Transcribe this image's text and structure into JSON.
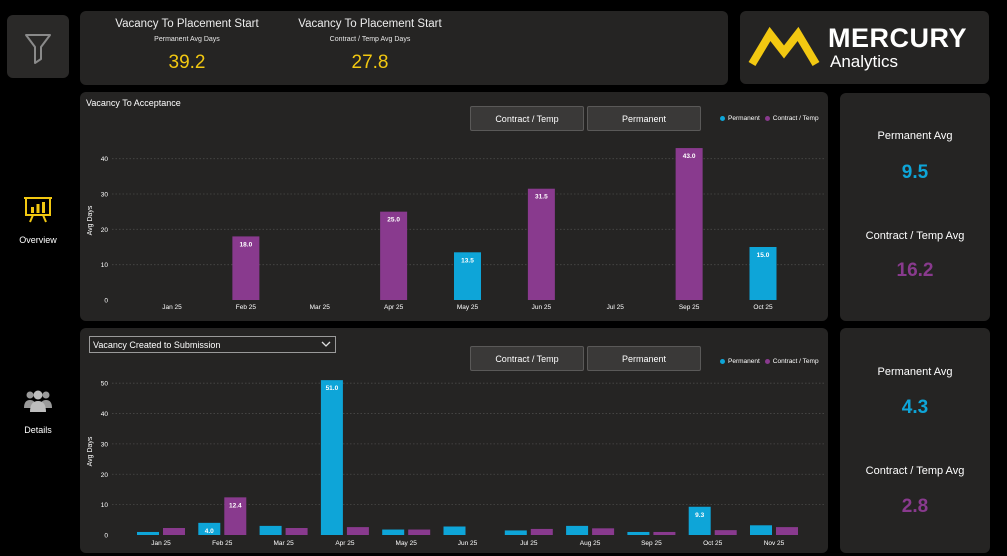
{
  "colors": {
    "permanent": "#0ea5d8",
    "contract": "#893a8e",
    "accent": "#f2c811",
    "card": "#252423"
  },
  "filter": {
    "icon": "filter-icon"
  },
  "kpis": [
    {
      "title": "Vacancy To Placement Start",
      "subtitle": "Permanent Avg Days",
      "value": "39.2"
    },
    {
      "title": "Vacancy To Placement Start",
      "subtitle": "Contract / Temp Avg Days",
      "value": "27.8"
    }
  ],
  "logo": {
    "brand": "MERCURY",
    "sub": "Analytics"
  },
  "nav": [
    {
      "label": "Overview",
      "icon": "presentation-board-icon"
    },
    {
      "label": "Details",
      "icon": "people-group-icon"
    }
  ],
  "chart1": {
    "title": "Vacancy To Acceptance",
    "buttons": [
      "Contract / Temp",
      "Permanent"
    ],
    "legend": [
      "Permanent",
      "Contract / Temp"
    ]
  },
  "chart2": {
    "dropdown": "Vacancy Created to Submission",
    "buttons": [
      "Contract / Temp",
      "Permanent"
    ],
    "legend": [
      "Permanent",
      "Contract / Temp"
    ]
  },
  "side1": {
    "perm_label": "Permanent Avg",
    "perm_value": "9.5",
    "contract_label": "Contract / Temp Avg",
    "contract_value": "16.2"
  },
  "side2": {
    "perm_label": "Permanent Avg",
    "perm_value": "4.3",
    "contract_label": "Contract / Temp Avg",
    "contract_value": "2.8"
  },
  "chart_data": [
    {
      "type": "bar",
      "title": "Vacancy To Acceptance",
      "xlabel": "",
      "ylabel": "Avg Days",
      "ylim": [
        0,
        45
      ],
      "yticks": [
        0,
        10,
        20,
        30,
        40
      ],
      "grid": true,
      "legend_position": "top-right",
      "categories": [
        "Jan 25",
        "Feb 25",
        "Mar 25",
        "Apr 25",
        "May 25",
        "Jun 25",
        "Jul 25",
        "Sep 25",
        "Oct 25"
      ],
      "series": [
        {
          "name": "Permanent",
          "values": [
            null,
            null,
            null,
            null,
            13.5,
            null,
            null,
            null,
            15.0
          ]
        },
        {
          "name": "Contract / Temp",
          "values": [
            null,
            18.0,
            null,
            25.0,
            null,
            31.5,
            null,
            43.0,
            null
          ]
        }
      ],
      "data_labels": {
        "Permanent": [
          null,
          null,
          null,
          null,
          "13.5",
          null,
          null,
          null,
          "15.0"
        ],
        "Contract / Temp": [
          null,
          "18.0",
          null,
          "25.0",
          null,
          "31.5",
          null,
          "43.0",
          null
        ]
      }
    },
    {
      "type": "bar",
      "title": "Vacancy Created to Submission",
      "xlabel": "",
      "ylabel": "Avg Days",
      "ylim": [
        0,
        55
      ],
      "yticks": [
        0,
        10,
        20,
        30,
        40,
        50
      ],
      "grid": true,
      "legend_position": "top-right",
      "categories": [
        "Jan 25",
        "Feb 25",
        "Mar 25",
        "Apr 25",
        "May 25",
        "Jun 25",
        "Jul 25",
        "Aug 25",
        "Sep 25",
        "Oct 25",
        "Nov 25"
      ],
      "series": [
        {
          "name": "Permanent",
          "values": [
            1.0,
            4.0,
            3.0,
            51.0,
            1.8,
            2.8,
            1.5,
            3.0,
            1.0,
            9.3,
            3.2
          ]
        },
        {
          "name": "Contract / Temp",
          "values": [
            2.3,
            12.4,
            2.3,
            2.6,
            1.8,
            null,
            2.0,
            2.2,
            1.0,
            1.6,
            2.6
          ]
        }
      ],
      "data_labels": {
        "Permanent": [
          null,
          "4.0",
          null,
          "51.0",
          null,
          null,
          null,
          null,
          null,
          "9.3",
          null
        ],
        "Contract / Temp": [
          null,
          "12.4",
          null,
          null,
          null,
          null,
          null,
          null,
          null,
          null,
          null
        ]
      }
    }
  ]
}
